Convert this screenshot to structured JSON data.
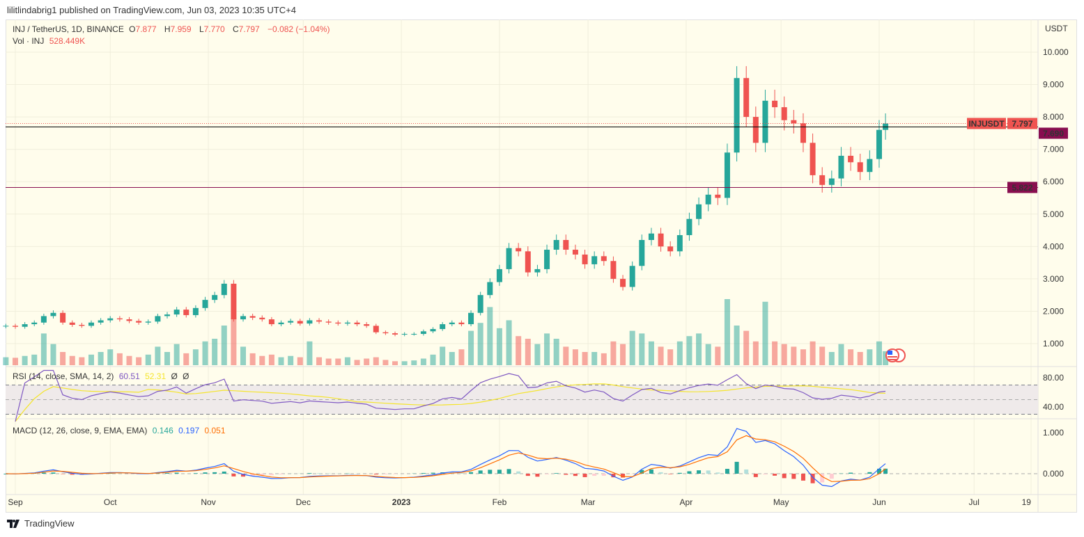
{
  "publisher": "lilitlindabrig1 published on TradingView.com, Jun 03, 2023 10:35 UTC+4",
  "legend": {
    "symbol": "INJ / TetherUS, 1D, BINANCE",
    "open_label": "O",
    "open": "7.877",
    "high_label": "H",
    "high": "7.959",
    "low_label": "L",
    "low": "7.770",
    "close_label": "C",
    "close": "7.797",
    "change": "−0.082 (−1.04%)",
    "vol_label": "Vol · INJ",
    "vol": "528.449K"
  },
  "rsi_legend": {
    "label": "RSI (14, close, SMA, 14, 2)",
    "rsi": "60.51",
    "sma": "52.31",
    "x1": "Ø",
    "x2": "Ø"
  },
  "macd_legend": {
    "label": "MACD (12, 26, close, 9, EMA, EMA)",
    "hist": "0.146",
    "macd": "0.197",
    "signal": "0.051"
  },
  "currency": "USDT",
  "price_axis": [
    "10.000",
    "9.000",
    "8.000",
    "7.000",
    "6.000",
    "5.000",
    "4.000",
    "3.000",
    "2.000",
    "1.000"
  ],
  "rsi_axis": [
    "80.00",
    "40.00"
  ],
  "macd_axis": [
    "1.000",
    "0.000"
  ],
  "time_axis": [
    "Sep",
    "Oct",
    "Nov",
    "Dec",
    "2023",
    "Feb",
    "Mar",
    "Apr",
    "May",
    "Jun",
    "Jul",
    "19"
  ],
  "price_tags": {
    "symbol": "INJUSDT",
    "last": "7.797",
    "line1": "7.690",
    "line2": "5.822"
  },
  "colors": {
    "up": "#26a69a",
    "down": "#ef5350",
    "rsi": "#7e57c2",
    "rsi_sma": "#f5e52a",
    "macd": "#2962ff",
    "signal": "#ff6d00",
    "hline1": "#000000",
    "hline2": "#880e4f"
  },
  "icons": {
    "event": "us-flag-icon",
    "logo": "tradingview-logo-icon"
  },
  "logo_text": "TradingView",
  "chart_data": {
    "type": "candlestick",
    "ylabel": "USDT",
    "ylim": [
      0.4,
      10.8
    ],
    "horizontal_lines": [
      7.69,
      5.822
    ],
    "series": [
      [
        "2022-08-29",
        1.55,
        300
      ],
      [
        "2022-09-01",
        1.52,
        280
      ],
      [
        "2022-09-04",
        1.6,
        350
      ],
      [
        "2022-09-07",
        1.65,
        400
      ],
      [
        "2022-09-10",
        1.85,
        1200
      ],
      [
        "2022-09-13",
        1.95,
        800
      ],
      [
        "2022-09-16",
        1.65,
        500
      ],
      [
        "2022-09-19",
        1.58,
        350
      ],
      [
        "2022-09-22",
        1.55,
        300
      ],
      [
        "2022-09-25",
        1.65,
        400
      ],
      [
        "2022-09-28",
        1.72,
        500
      ],
      [
        "2022-10-01",
        1.78,
        600
      ],
      [
        "2022-10-04",
        1.75,
        450
      ],
      [
        "2022-10-07",
        1.7,
        350
      ],
      [
        "2022-10-10",
        1.65,
        300
      ],
      [
        "2022-10-13",
        1.68,
        400
      ],
      [
        "2022-10-16",
        1.85,
        700
      ],
      [
        "2022-10-19",
        1.9,
        500
      ],
      [
        "2022-10-22",
        2.05,
        800
      ],
      [
        "2022-10-25",
        1.88,
        450
      ],
      [
        "2022-10-28",
        2.1,
        600
      ],
      [
        "2022-10-31",
        2.35,
        900
      ],
      [
        "2022-11-03",
        2.5,
        1000
      ],
      [
        "2022-11-06",
        2.85,
        1500
      ],
      [
        "2022-11-09",
        1.75,
        1800
      ],
      [
        "2022-11-12",
        1.85,
        700
      ],
      [
        "2022-11-15",
        1.8,
        450
      ],
      [
        "2022-11-18",
        1.75,
        350
      ],
      [
        "2022-11-21",
        1.6,
        400
      ],
      [
        "2022-11-24",
        1.65,
        300
      ],
      [
        "2022-11-27",
        1.7,
        350
      ],
      [
        "2022-11-30",
        1.62,
        300
      ],
      [
        "2022-12-03",
        1.72,
        900
      ],
      [
        "2022-12-06",
        1.68,
        300
      ],
      [
        "2022-12-09",
        1.65,
        250
      ],
      [
        "2022-12-12",
        1.62,
        250
      ],
      [
        "2022-12-15",
        1.65,
        300
      ],
      [
        "2022-12-18",
        1.6,
        200
      ],
      [
        "2022-12-21",
        1.55,
        250
      ],
      [
        "2022-12-24",
        1.35,
        300
      ],
      [
        "2022-12-27",
        1.32,
        200
      ],
      [
        "2022-12-30",
        1.28,
        150
      ],
      [
        "2023-01-02",
        1.3,
        150
      ],
      [
        "2023-01-05",
        1.3,
        180
      ],
      [
        "2023-01-08",
        1.38,
        250
      ],
      [
        "2023-01-11",
        1.45,
        400
      ],
      [
        "2023-01-14",
        1.6,
        700
      ],
      [
        "2023-01-17",
        1.65,
        500
      ],
      [
        "2023-01-20",
        1.6,
        600
      ],
      [
        "2023-01-23",
        1.95,
        1300
      ],
      [
        "2023-01-26",
        2.5,
        1600
      ],
      [
        "2023-01-29",
        2.9,
        2200
      ],
      [
        "2023-02-01",
        3.3,
        1400
      ],
      [
        "2023-02-04",
        3.95,
        1700
      ],
      [
        "2023-02-07",
        3.85,
        1100
      ],
      [
        "2023-02-10",
        3.2,
        1000
      ],
      [
        "2023-02-13",
        3.3,
        800
      ],
      [
        "2023-02-16",
        3.9,
        1200
      ],
      [
        "2023-02-19",
        4.2,
        1000
      ],
      [
        "2023-02-22",
        3.9,
        700
      ],
      [
        "2023-02-25",
        3.75,
        600
      ],
      [
        "2023-02-28",
        3.45,
        500
      ],
      [
        "2023-03-03",
        3.7,
        500
      ],
      [
        "2023-03-06",
        3.55,
        450
      ],
      [
        "2023-03-09",
        3.0,
        900
      ],
      [
        "2023-03-12",
        2.75,
        800
      ],
      [
        "2023-03-15",
        3.4,
        1300
      ],
      [
        "2023-03-18",
        4.2,
        1200
      ],
      [
        "2023-03-21",
        4.4,
        900
      ],
      [
        "2023-03-24",
        4.0,
        700
      ],
      [
        "2023-03-27",
        3.85,
        600
      ],
      [
        "2023-03-30",
        4.35,
        900
      ],
      [
        "2023-04-02",
        4.85,
        1100
      ],
      [
        "2023-04-05",
        5.3,
        1200
      ],
      [
        "2023-04-08",
        5.6,
        800
      ],
      [
        "2023-04-11",
        5.5,
        700
      ],
      [
        "2023-04-14",
        6.9,
        2500
      ],
      [
        "2023-04-17",
        9.2,
        1500
      ],
      [
        "2023-04-20",
        8.0,
        1300
      ],
      [
        "2023-04-23",
        7.2,
        900
      ],
      [
        "2023-04-26",
        8.5,
        2400
      ],
      [
        "2023-04-29",
        8.3,
        900
      ],
      [
        "2023-05-02",
        7.9,
        800
      ],
      [
        "2023-05-05",
        7.8,
        700
      ],
      [
        "2023-05-08",
        7.2,
        600
      ],
      [
        "2023-05-11",
        6.2,
        900
      ],
      [
        "2023-05-14",
        5.9,
        700
      ],
      [
        "2023-05-17",
        6.1,
        500
      ],
      [
        "2023-05-20",
        6.8,
        800
      ],
      [
        "2023-05-23",
        6.6,
        600
      ],
      [
        "2023-05-26",
        6.3,
        500
      ],
      [
        "2023-05-29",
        6.7,
        600
      ],
      [
        "2023-06-01",
        7.6,
        900
      ],
      [
        "2023-06-03",
        7.797,
        528.449
      ]
    ]
  }
}
